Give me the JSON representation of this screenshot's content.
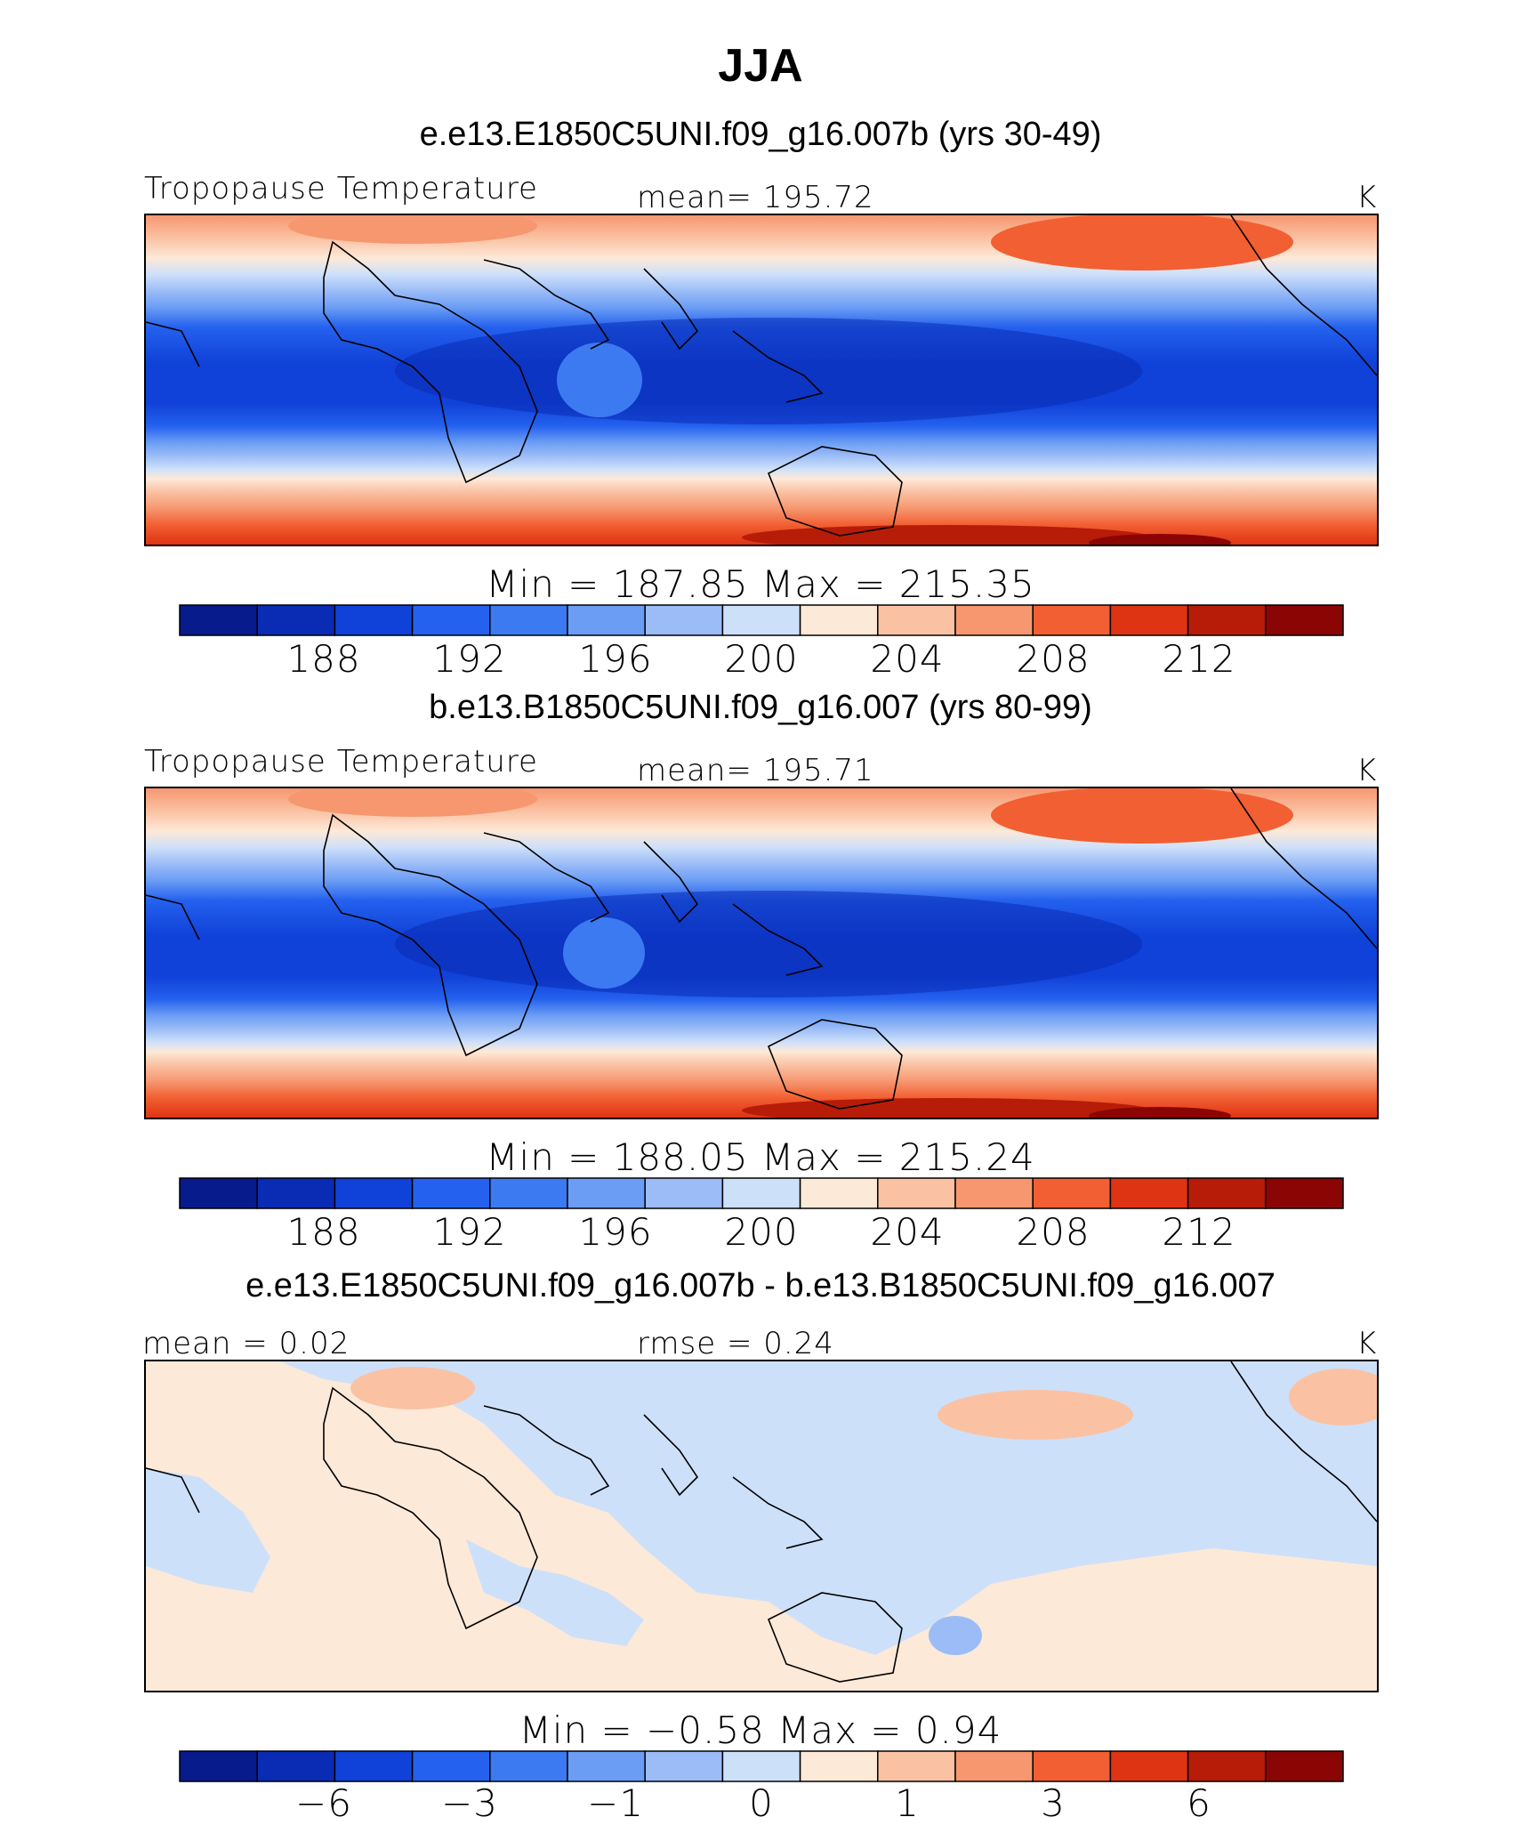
{
  "title": "JJA",
  "units": "K",
  "palette": [
    "#081b8c",
    "#0a2bb4",
    "#1041d8",
    "#2461ee",
    "#3c7af2",
    "#6b9df5",
    "#9bbcf7",
    "#cde0fa",
    "#fde9d8",
    "#fac2a3",
    "#f69770",
    "#f25f32",
    "#df3414",
    "#b71c08",
    "#8b0504"
  ],
  "chart_data": [
    {
      "type": "heatmap",
      "case": "e.e13.E1850C5UNI.f09_g16.007b (yrs 30-49)",
      "variable": "Tropopause Temperature",
      "mean_label": "mean=  195.72",
      "units": "K",
      "min_max_label": "Min  =  187.85  Max  =  215.35",
      "min": 187.85,
      "max": 215.35,
      "mean": 195.72,
      "levels": [
        187,
        188,
        189,
        190,
        192,
        194,
        196,
        198,
        200,
        202,
        204,
        206,
        208,
        210,
        212,
        214
      ],
      "tick_labels": [
        "188",
        "192",
        "196",
        "200",
        "204",
        "208",
        "212"
      ]
    },
    {
      "type": "heatmap",
      "case": "b.e13.B1850C5UNI.f09_g16.007 (yrs 80-99)",
      "variable": "Tropopause Temperature",
      "mean_label": "mean=  195.71",
      "units": "K",
      "min_max_label": "Min  =  188.05  Max  =  215.24",
      "min": 188.05,
      "max": 215.24,
      "mean": 195.71,
      "levels": [
        187,
        188,
        189,
        190,
        192,
        194,
        196,
        198,
        200,
        202,
        204,
        206,
        208,
        210,
        212,
        214
      ],
      "tick_labels": [
        "188",
        "192",
        "196",
        "200",
        "204",
        "208",
        "212"
      ]
    },
    {
      "type": "heatmap",
      "case": "e.e13.E1850C5UNI.f09_g16.007b - b.e13.B1850C5UNI.f09_g16.007",
      "mean_label": "mean =    0.02",
      "rmse_label": "rmse =    0.24",
      "units": "K",
      "min_max_label": "Min  =   −0.58  Max  =     0.94",
      "min": -0.58,
      "max": 0.94,
      "mean": 0.02,
      "rmse": 0.24,
      "tick_labels": [
        "−6",
        "−3",
        "−1",
        "0",
        "1",
        "3",
        "6"
      ]
    }
  ]
}
